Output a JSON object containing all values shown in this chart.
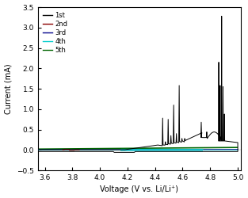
{
  "title": "",
  "xlabel": "Voltage (V vs. Li/Li⁺)",
  "ylabel": "Current (mA)",
  "xlim": [
    3.55,
    5.02
  ],
  "ylim": [
    -0.5,
    3.5
  ],
  "xticks": [
    3.6,
    3.8,
    4.0,
    4.2,
    4.4,
    4.6,
    4.8,
    5.0
  ],
  "yticks": [
    -0.5,
    0.0,
    0.5,
    1.0,
    1.5,
    2.0,
    2.5,
    3.0,
    3.5
  ],
  "legend_labels": [
    "1st",
    "2nd",
    "3rd",
    "4th",
    "5th"
  ],
  "legend_colors": [
    "black",
    "#8B0000",
    "#00008B",
    "#00CCCC",
    "#006400"
  ],
  "background_color": "#ffffff",
  "figsize": [
    3.13,
    2.5
  ],
  "dpi": 100
}
